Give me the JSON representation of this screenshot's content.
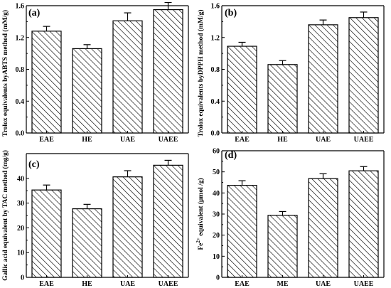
{
  "chart_data": [
    {
      "type": "bar",
      "panel": "(a)",
      "categories": [
        "EAE",
        "HE",
        "UAE",
        "UAEE"
      ],
      "values": [
        1.28,
        1.06,
        1.41,
        1.55
      ],
      "errors": [
        0.06,
        0.05,
        0.1,
        0.09
      ],
      "ylabel": "Trolox equivalents byABTS method (mM/g)",
      "ylim": [
        0,
        1.6
      ],
      "yticks": [
        0.0,
        0.4,
        0.8,
        1.2,
        1.6
      ],
      "ytick_labels": [
        "0.0",
        "0.4",
        "0.8",
        "1.2",
        "1.6"
      ]
    },
    {
      "type": "bar",
      "panel": "(b)",
      "categories": [
        "EAE",
        "HE",
        "UAE",
        "UAEE"
      ],
      "values": [
        1.09,
        0.86,
        1.36,
        1.45
      ],
      "errors": [
        0.05,
        0.05,
        0.06,
        0.07
      ],
      "ylabel": "Trolox equivalents byDPPH method (mM/g)",
      "ylim": [
        0,
        1.6
      ],
      "yticks": [
        0.0,
        0.4,
        0.8,
        1.2,
        1.6
      ],
      "ytick_labels": [
        "0.0",
        "0.4",
        "0.8",
        "1.2",
        "1.6"
      ]
    },
    {
      "type": "bar",
      "panel": "(c)",
      "categories": [
        "EAE",
        "HE",
        "UAE",
        "UAEE"
      ],
      "values": [
        35.3,
        27.7,
        40.6,
        45.3
      ],
      "errors": [
        2.0,
        1.8,
        2.5,
        2.0
      ],
      "ylabel": "Gallic acid equivalent by TAC method (mg/g)",
      "ylim": [
        0,
        50
      ],
      "yticks": [
        0,
        10,
        20,
        30,
        40
      ],
      "ytick_labels": [
        "0",
        "10",
        "20",
        "30",
        "40"
      ]
    },
    {
      "type": "bar",
      "panel": "(d)",
      "categories": [
        "EAE",
        "ME",
        "UAE",
        "UAEE"
      ],
      "values": [
        43.6,
        29.4,
        46.8,
        50.5
      ],
      "errors": [
        2.2,
        1.8,
        2.3,
        2.0
      ],
      "ylabel_pre": "Fe",
      "ylabel_sup": "2+",
      "ylabel_post": " equivalent (μmol /g)",
      "ylim": [
        0,
        60
      ],
      "yticks": [
        0,
        10,
        20,
        30,
        40,
        50,
        60
      ],
      "ytick_labels": [
        "0",
        "10",
        "20",
        "30",
        "40",
        "50",
        "60"
      ]
    }
  ]
}
